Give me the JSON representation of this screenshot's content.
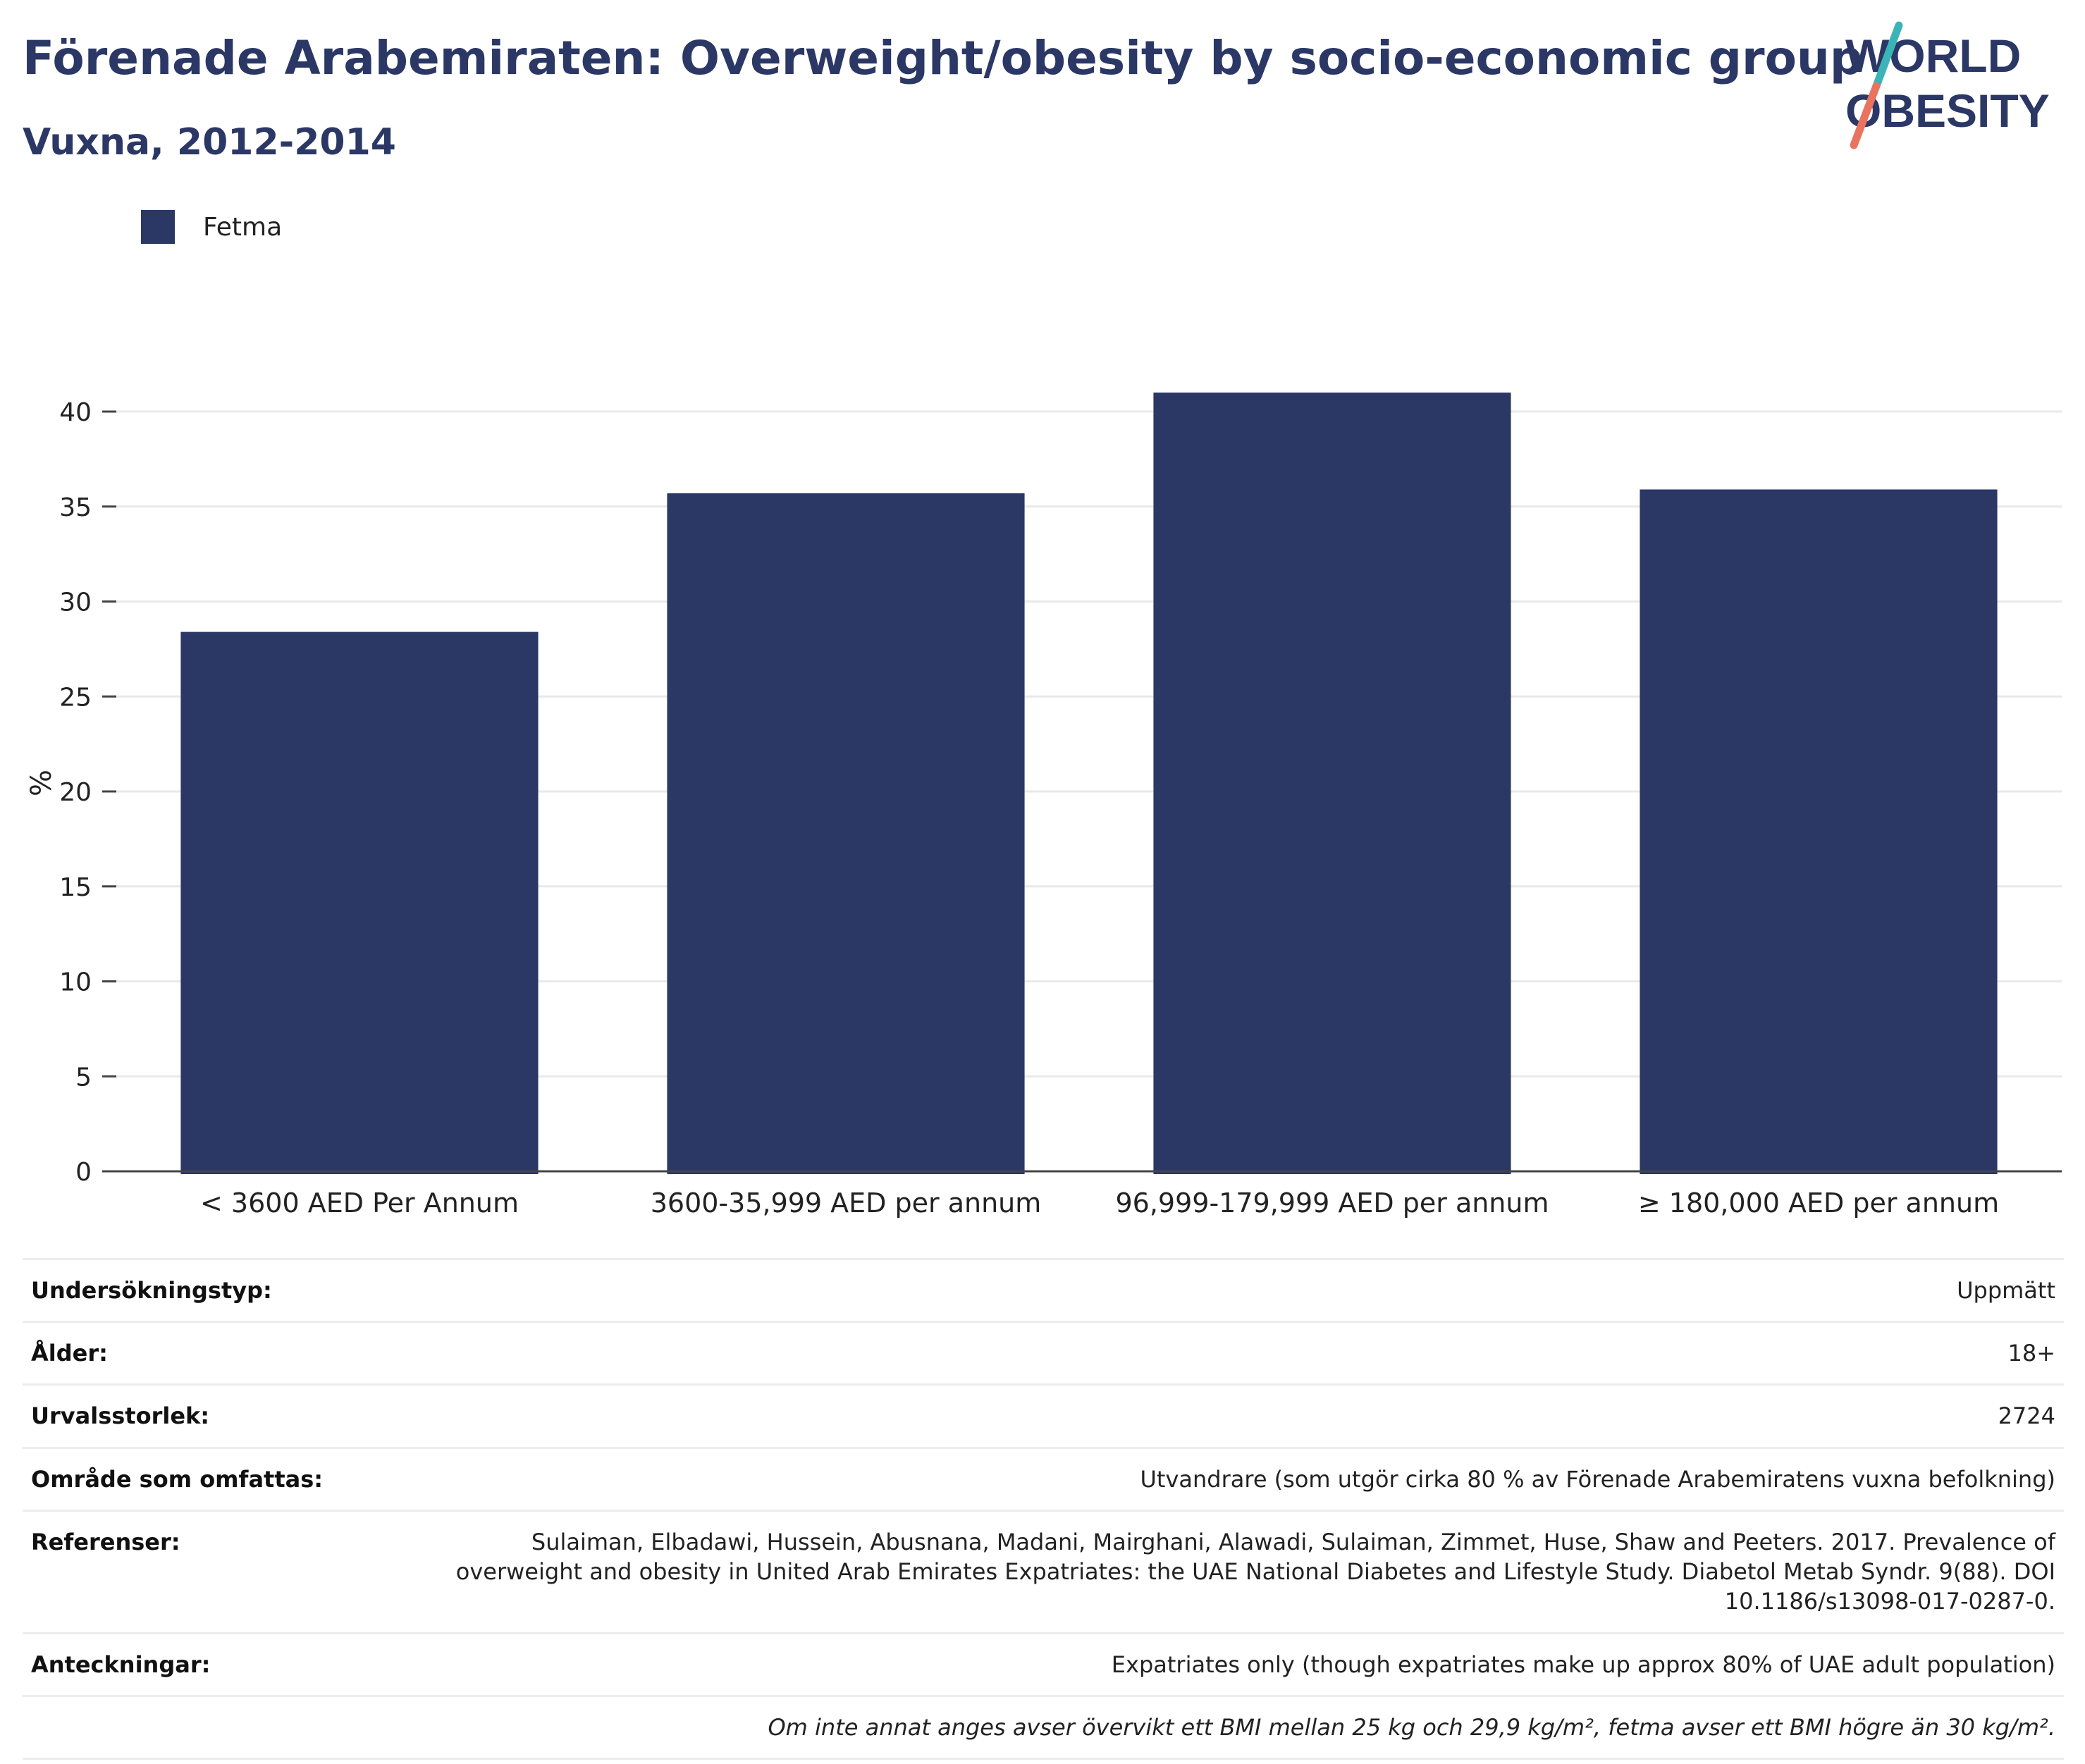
{
  "header": {
    "title": "Förenade Arabemiraten: Overweight/obesity by socio-economic group",
    "subtitle": "Vuxna, 2012-2014"
  },
  "logo": {
    "line1": "WORLD",
    "line2": "OBESITY",
    "slash_color_top": "#3bb4b8",
    "slash_color_bottom": "#e8735f"
  },
  "legend": {
    "items": [
      {
        "label": "Fetma",
        "color": "#2b3765"
      }
    ]
  },
  "chart_data": {
    "type": "bar",
    "categories": [
      "< 3600 AED Per Annum",
      "3600-35,999 AED per annum",
      "96,999-179,999 AED per annum",
      "≥ 180,000 AED per annum"
    ],
    "series": [
      {
        "name": "Fetma",
        "values": [
          28.4,
          35.7,
          41.0,
          35.9
        ],
        "color": "#2b3765"
      }
    ],
    "ylabel": "%",
    "ylim": [
      0,
      40
    ],
    "yticks": [
      0,
      5,
      10,
      15,
      20,
      25,
      30,
      35,
      40
    ],
    "grid": true,
    "legend_position": "top-left"
  },
  "info": {
    "rows": [
      {
        "key": "Undersökningstyp:",
        "value": "Uppmätt"
      },
      {
        "key": "Ålder:",
        "value": "18+"
      },
      {
        "key": "Urvalsstorlek:",
        "value": "2724"
      },
      {
        "key": "Område som omfattas:",
        "value": "Utvandrare (som utgör cirka 80 % av Förenade Arabemiratens vuxna befolkning)"
      },
      {
        "key": "Referenser:",
        "value": "Sulaiman, Elbadawi, Hussein, Abusnana, Madani, Mairghani, Alawadi, Sulaiman, Zimmet, Huse, Shaw and Peeters. 2017. Prevalence of overweight and obesity in United Arab Emirates Expatriates: the UAE National Diabetes and Lifestyle Study. Diabetol Metab Syndr. 9(88). DOI 10.1186/s13098-017-0287-0."
      },
      {
        "key": "Anteckningar:",
        "value": "Expatriates only (though expatriates make up approx 80% of UAE adult population)"
      }
    ],
    "footnote": "Om inte annat anges avser övervikt ett BMI mellan 25 kg och 29,9 kg/m², fetma avser ett BMI högre än 30 kg/m²."
  }
}
